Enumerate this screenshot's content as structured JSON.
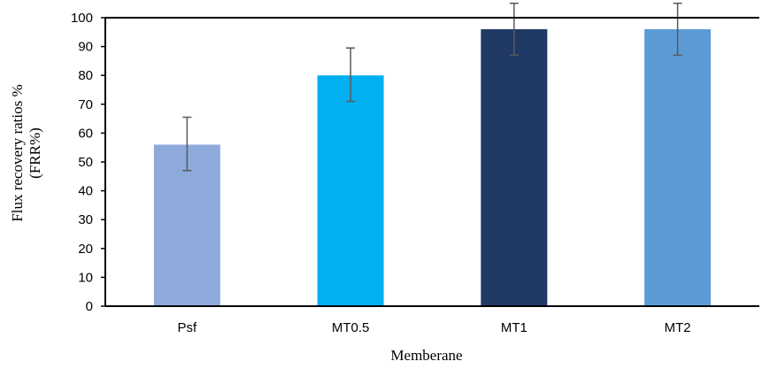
{
  "chart_data": {
    "type": "bar",
    "title": "",
    "xlabel": "Memberane",
    "ylabel_lines": [
      "Flux recovery ratios %",
      "(FRR%)"
    ],
    "categories": [
      "Psf",
      "MT0.5",
      "MT1",
      "MT2"
    ],
    "values": [
      56,
      80,
      96,
      96
    ],
    "error_low": [
      47,
      71,
      87,
      87
    ],
    "error_high": [
      65.5,
      89.5,
      105,
      105
    ],
    "colors": [
      "#8eaadb",
      "#00b0f0",
      "#1f3864",
      "#5b9bd5"
    ],
    "ylim": [
      0,
      100
    ],
    "yticks": [
      0,
      10,
      20,
      30,
      40,
      50,
      60,
      70,
      80,
      90,
      100
    ],
    "grid": false,
    "legend": "none"
  }
}
